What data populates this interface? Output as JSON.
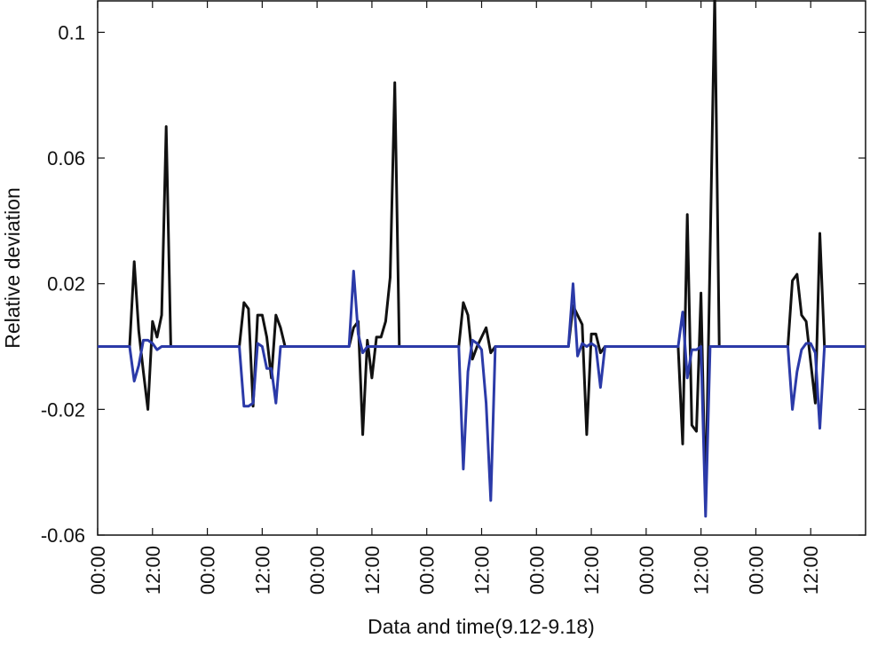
{
  "chart_data": {
    "type": "line",
    "title": "",
    "xlabel": "Data and time(9.12-9.18)",
    "ylabel": "Relative deviation",
    "ylim": [
      -0.06,
      0.11
    ],
    "xlim": [
      0,
      168
    ],
    "y_ticks": [
      -0.06,
      -0.02,
      0.02,
      0.06,
      0.1
    ],
    "y_tick_labels": [
      "-0.06",
      "-0.02",
      "0.02",
      "0.06",
      "0.1"
    ],
    "x_ticks": [
      0,
      12,
      24,
      36,
      48,
      60,
      72,
      84,
      96,
      108,
      120,
      132,
      144,
      156
    ],
    "x_tick_labels": [
      "00:00",
      "12:00",
      "00:00",
      "12:00",
      "00:00",
      "12:00",
      "00:00",
      "12:00",
      "00:00",
      "12:00",
      "00:00",
      "12:00",
      "00:00",
      "12:00"
    ],
    "grid": false,
    "legend": "none",
    "series": [
      {
        "color": "#111111",
        "x": [
          -6,
          7,
          8,
          9,
          10,
          11,
          12,
          13,
          14,
          15,
          16,
          17,
          31,
          32,
          33,
          34,
          35,
          36,
          37,
          38,
          39,
          40,
          41,
          43,
          44,
          55,
          56,
          57,
          58,
          59,
          60,
          61,
          62,
          63,
          64,
          65,
          66,
          67,
          79,
          80,
          81,
          82,
          83,
          84,
          85,
          86,
          87,
          103,
          104,
          105,
          106,
          107,
          108,
          109,
          110,
          111,
          127,
          128,
          129,
          130,
          131,
          132,
          133,
          134,
          135,
          136,
          137,
          138,
          139,
          151,
          152,
          153,
          154,
          155,
          156,
          157,
          158,
          159,
          174
        ],
        "y": [
          0,
          0,
          0.027,
          0.005,
          -0.008,
          -0.02,
          0.008,
          0.003,
          0.01,
          0.07,
          0,
          0,
          0,
          0.014,
          0.012,
          -0.019,
          0.01,
          0.01,
          0.003,
          -0.01,
          0.01,
          0.006,
          0,
          0,
          0,
          0,
          0.006,
          0.008,
          -0.028,
          0.002,
          -0.01,
          0.003,
          0.003,
          0.008,
          0.022,
          0.084,
          0,
          0,
          0,
          0.014,
          0.01,
          -0.004,
          0,
          0.003,
          0.006,
          -0.002,
          0,
          0,
          0.013,
          0.01,
          0.007,
          -0.028,
          0.004,
          0.004,
          -0.002,
          0,
          0,
          -0.031,
          0.042,
          -0.025,
          -0.027,
          0.017,
          -0.05,
          0.03,
          0.112,
          0,
          0,
          0,
          0,
          0,
          0.021,
          0.023,
          0.01,
          0.008,
          -0.005,
          -0.018,
          0.036,
          0,
          0
        ]
      },
      {
        "color": "#2b3aa8",
        "x": [
          -6,
          7,
          8,
          9,
          10,
          11,
          12,
          13,
          14,
          15,
          31,
          32,
          33,
          34,
          35,
          36,
          37,
          38,
          39,
          40,
          41,
          55,
          56,
          57,
          58,
          59,
          60,
          61,
          62,
          63,
          79,
          80,
          81,
          82,
          83,
          84,
          85,
          86,
          87,
          88,
          103,
          104,
          105,
          106,
          107,
          108,
          109,
          110,
          111,
          112,
          113,
          114,
          115,
          127,
          128,
          129,
          130,
          131,
          132,
          133,
          134,
          135,
          136,
          151,
          152,
          153,
          154,
          155,
          156,
          157,
          158,
          159,
          160,
          161,
          174
        ],
        "y": [
          0,
          0,
          -0.011,
          -0.006,
          0.002,
          0.002,
          0.001,
          -0.001,
          0,
          0,
          0,
          -0.019,
          -0.019,
          -0.018,
          0.001,
          0,
          -0.007,
          -0.007,
          -0.018,
          0,
          0,
          0,
          0.024,
          0.004,
          -0.002,
          0,
          0,
          0,
          0,
          0,
          0,
          -0.039,
          -0.008,
          0.002,
          0.001,
          -0.001,
          -0.018,
          -0.049,
          0,
          0,
          0,
          0.02,
          -0.003,
          0.001,
          0,
          0.001,
          0,
          -0.013,
          0,
          0,
          0,
          0,
          0,
          0,
          0.011,
          -0.01,
          -0.001,
          -0.001,
          0,
          -0.054,
          0,
          0,
          0,
          0,
          -0.02,
          -0.008,
          -0.001,
          0.001,
          0.001,
          -0.002,
          -0.026,
          0,
          0,
          0,
          0
        ]
      }
    ]
  }
}
